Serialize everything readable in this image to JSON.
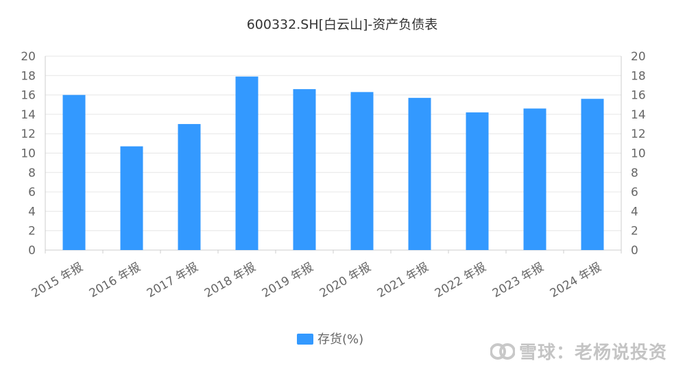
{
  "chart_data": {
    "type": "bar",
    "title": "600332.SH[白云山]-资产负债表",
    "categories": [
      "2015 年报",
      "2016 年报",
      "2017 年报",
      "2018 年报",
      "2019 年报",
      "2020 年报",
      "2021 年报",
      "2022 年报",
      "2023 年报",
      "2024 年报"
    ],
    "series": [
      {
        "name": "存货(%)",
        "values": [
          16.0,
          10.7,
          13.0,
          17.9,
          16.6,
          16.3,
          15.7,
          14.2,
          14.6,
          15.6
        ]
      }
    ],
    "ylim": [
      0,
      20
    ],
    "y_ticks": [
      "0",
      "2",
      "4",
      "6",
      "8",
      "10",
      "12",
      "14",
      "16",
      "18",
      "20"
    ],
    "y2_ticks": [
      "0",
      "2",
      "4",
      "6",
      "8",
      "10",
      "12",
      "14",
      "16",
      "18",
      "20"
    ],
    "grid": true,
    "legend_placement": "bottom-center",
    "colors": {
      "bar": "#3399ff",
      "grid": "#e6e6e6",
      "axis": "#cccccc",
      "text": "#666666",
      "title": "#333333"
    }
  },
  "watermark": {
    "text": "雪球：老杨说投资"
  }
}
